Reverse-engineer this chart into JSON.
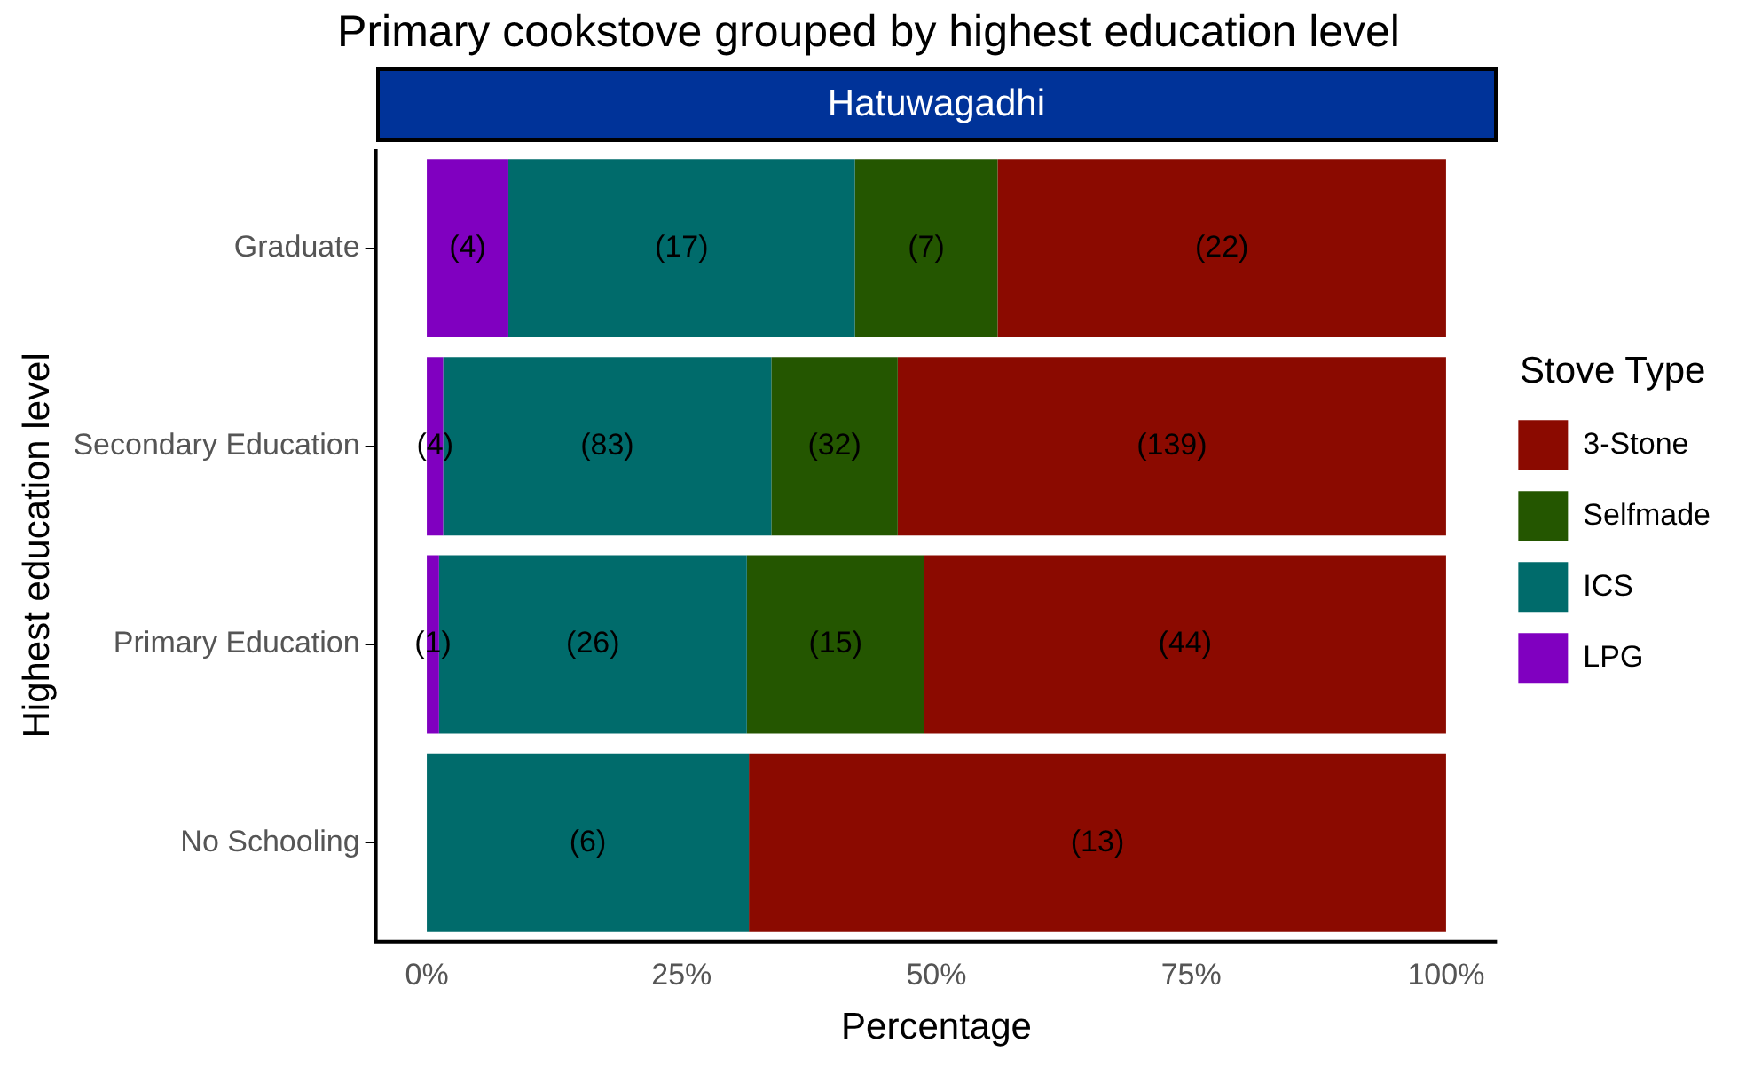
{
  "chart_data": {
    "type": "bar",
    "orientation": "horizontal",
    "stacked": true,
    "title": "Primary cookstove grouped by highest education level",
    "subtitle": "Hatuwagadhi",
    "xlabel": "Percentage",
    "ylabel": "Highest education level",
    "legend_title": "Stove Type",
    "legend": "right",
    "grid": false,
    "categories": [
      "Graduate",
      "Secondary Education",
      "Primary Education",
      "No Schooling"
    ],
    "xlim": [
      -5,
      105
    ],
    "xticks": [
      {
        "value": 0,
        "label": "0%"
      },
      {
        "value": 25,
        "label": "25%"
      },
      {
        "value": 50,
        "label": "50%"
      },
      {
        "value": 75,
        "label": "75%"
      },
      {
        "value": 100,
        "label": "100%"
      }
    ],
    "series": [
      {
        "name": "LPG",
        "color": "#8000c0",
        "values": [
          8,
          1.6,
          1.2,
          0
        ]
      },
      {
        "name": "ICS",
        "color": "#006b6b",
        "values": [
          34,
          32.2,
          30.2,
          31.6
        ]
      },
      {
        "name": "Selfmade",
        "color": "#245600",
        "values": [
          14,
          12.4,
          17.4,
          0
        ]
      },
      {
        "name": "3-Stone",
        "color": "#8b0a00",
        "values": [
          44,
          53.8,
          51.2,
          68.4
        ]
      }
    ],
    "annotations": [
      {
        "text": "(4)",
        "x": 4,
        "y": "Graduate"
      },
      {
        "text": "(17)",
        "x": 25,
        "y": "Graduate"
      },
      {
        "text": "(7)",
        "x": 49,
        "y": "Graduate"
      },
      {
        "text": "(22)",
        "x": 78,
        "y": "Graduate"
      },
      {
        "text": "(4)",
        "x": 0.8,
        "y": "Secondary Education"
      },
      {
        "text": "(83)",
        "x": 17.7,
        "y": "Secondary Education"
      },
      {
        "text": "(32)",
        "x": 40,
        "y": "Secondary Education"
      },
      {
        "text": "(139)",
        "x": 73.1,
        "y": "Secondary Education"
      },
      {
        "text": "(1)",
        "x": 0.6,
        "y": "Primary Education"
      },
      {
        "text": "(26)",
        "x": 16.3,
        "y": "Primary Education"
      },
      {
        "text": "(15)",
        "x": 40.1,
        "y": "Primary Education"
      },
      {
        "text": "(44)",
        "x": 74.4,
        "y": "Primary Education"
      },
      {
        "text": "(6)",
        "x": 15.8,
        "y": "No Schooling"
      },
      {
        "text": "(13)",
        "x": 65.8,
        "y": "No Schooling"
      }
    ]
  }
}
